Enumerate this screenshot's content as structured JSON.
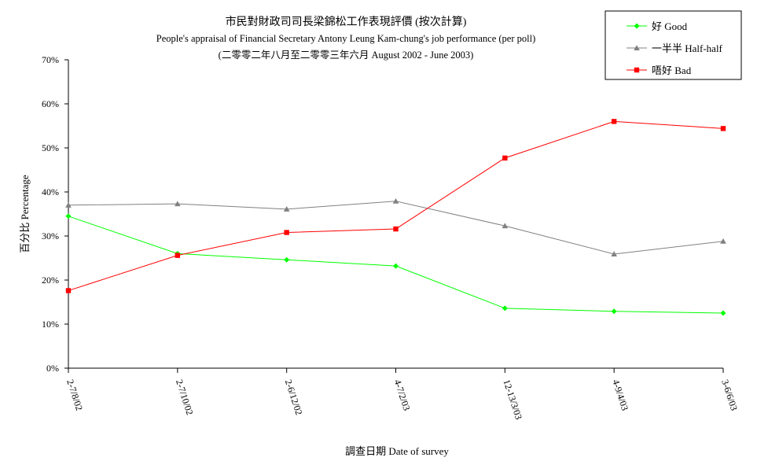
{
  "chart_data": {
    "type": "line",
    "title": "市民對財政司司長梁錦松工作表現評價 (按次計算)",
    "subtitle": "People's appraisal of Financial Secretary Antony Leung Kam-chung's job performance (per poll)",
    "subtitle2": "(二零零二年八月至二零零三年六月 August 2002 - June 2003)",
    "xlabel": "調查日期 Date of survey",
    "ylabel": "百分比 Percentage",
    "categories": [
      "2-7/8/02",
      "2-7/10/02",
      "2-6/12/02",
      "4-7/2/03",
      "12-13/3/03",
      "4-9/4/03",
      "3-6/6/03"
    ],
    "ylim": [
      0,
      70
    ],
    "yticks": [
      "0%",
      "10%",
      "20%",
      "30%",
      "40%",
      "50%",
      "60%",
      "70%"
    ],
    "legend_position": "top-right",
    "series": [
      {
        "name": "好 Good",
        "color": "#00ff00",
        "marker": "diamond",
        "values": [
          34.5,
          26.0,
          24.6,
          23.2,
          13.6,
          12.9,
          12.5
        ]
      },
      {
        "name": "一半半 Half-half",
        "color": "#808080",
        "marker": "triangle",
        "values": [
          37.0,
          37.3,
          36.1,
          37.9,
          32.3,
          25.9,
          28.8
        ]
      },
      {
        "name": "唔好 Bad",
        "color": "#ff0000",
        "marker": "square",
        "values": [
          17.6,
          25.6,
          30.8,
          31.6,
          47.7,
          56.0,
          54.4
        ]
      }
    ]
  }
}
